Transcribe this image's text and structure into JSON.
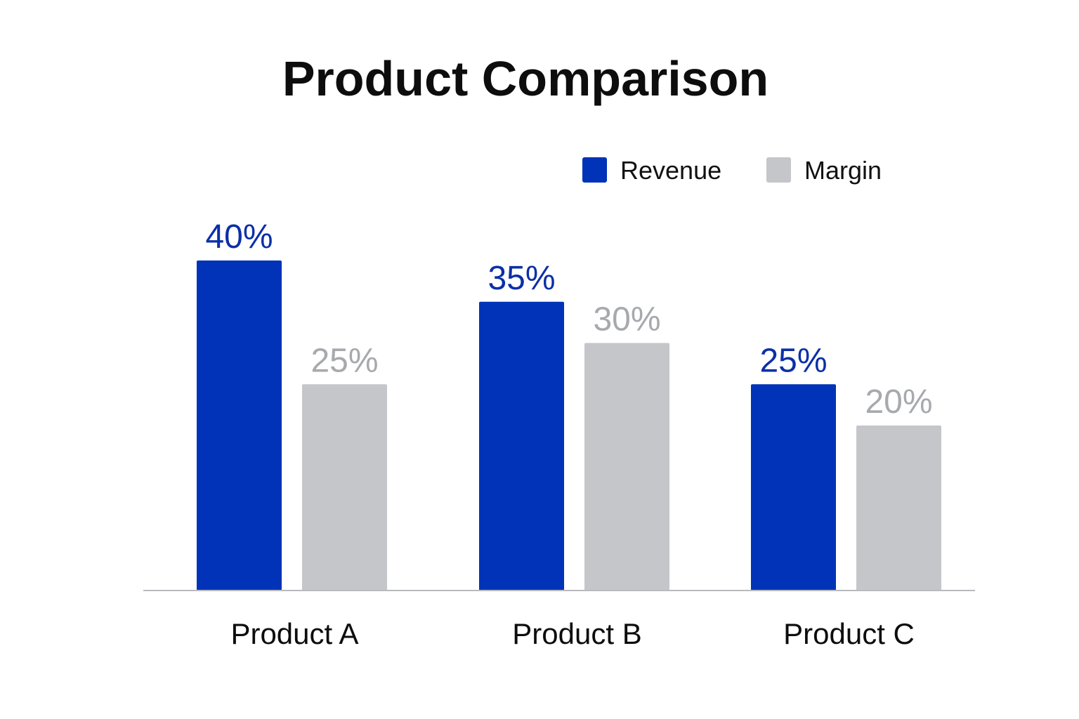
{
  "chart_data": {
    "type": "bar",
    "title": "Product Comparison",
    "categories": [
      "Product A",
      "Product B",
      "Product C"
    ],
    "series": [
      {
        "name": "Revenue",
        "values": [
          40,
          35,
          25
        ],
        "color": "#0033b8",
        "label_color": "#0b2fa8"
      },
      {
        "name": "Margin",
        "values": [
          25,
          30,
          20
        ],
        "color": "#c4c6c9",
        "label_color": "#a7a9ad"
      }
    ],
    "value_suffix": "%",
    "xlabel": "",
    "ylabel": "",
    "ylim": [
      0,
      40
    ],
    "grid": false,
    "legend_position": "top-right"
  }
}
